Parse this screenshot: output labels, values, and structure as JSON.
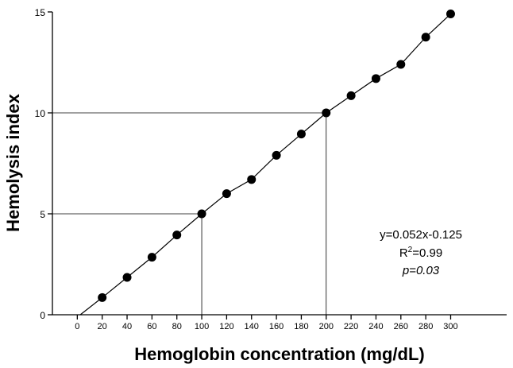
{
  "chart_data": {
    "type": "scatter",
    "title": "",
    "xlabel": "Hemoglobin concentration (mg/dL)",
    "ylabel": "Hemolysis index",
    "xlim": [
      -20,
      345
    ],
    "ylim": [
      0,
      15
    ],
    "x_ticks": [
      0,
      20,
      40,
      60,
      80,
      100,
      120,
      140,
      160,
      180,
      200,
      220,
      240,
      260,
      280,
      300
    ],
    "y_ticks": [
      0,
      5,
      10,
      15
    ],
    "grid": false,
    "series": [
      {
        "marker": "filled-circle",
        "line": true,
        "color": "#000000",
        "x": [
          20,
          40,
          60,
          80,
          100,
          120,
          140,
          160,
          180,
          200,
          220,
          240,
          260,
          280,
          300
        ],
        "y": [
          0.85,
          1.85,
          2.85,
          3.95,
          5.0,
          6.0,
          6.7,
          7.9,
          8.95,
          10.0,
          10.85,
          11.7,
          12.4,
          13.75,
          14.9
        ]
      }
    ],
    "line_start": {
      "x": 2.4,
      "y": 0
    },
    "reference_lines": [
      {
        "x": 100,
        "y": 5
      },
      {
        "x": 200,
        "y": 10
      }
    ],
    "annotation": {
      "equation": "y=0.052x-0.125",
      "r_squared_prefix": "R",
      "r_squared_sup": "2",
      "r_squared_value": "=0.99",
      "p_value": "p=0.03"
    }
  }
}
